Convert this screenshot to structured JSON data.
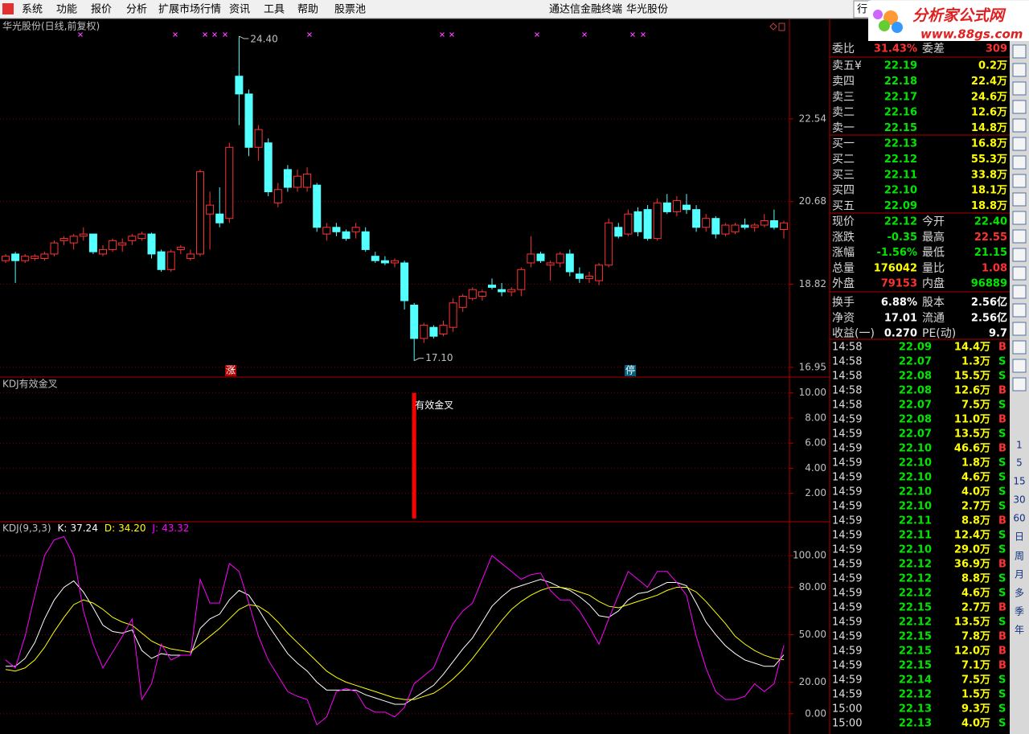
{
  "menu": {
    "items": [
      "系统",
      "功能",
      "报价",
      "分析",
      "扩展市场行情",
      "资讯",
      "工具",
      "帮助",
      "股票池"
    ],
    "app_title": "通达信金融终端",
    "stock": "华光股份",
    "tab": "行"
  },
  "logo": {
    "title": "分析家公式网",
    "url": "www.88gs.com"
  },
  "price_chart": {
    "title": "华光股份(日线,前复权)",
    "up_color": "#ff3232",
    "down_color": "#54ffff",
    "candles": [
      [
        19.35,
        19.5,
        19.3,
        19.45
      ],
      [
        19.5,
        19.55,
        18.85,
        19.35
      ],
      [
        19.35,
        19.5,
        19.3,
        19.45
      ],
      [
        19.4,
        19.5,
        19.35,
        19.45
      ],
      [
        19.4,
        19.55,
        19.35,
        19.5
      ],
      [
        19.5,
        19.8,
        19.45,
        19.75
      ],
      [
        19.8,
        19.9,
        19.7,
        19.85
      ],
      [
        19.75,
        19.95,
        19.6,
        19.9
      ],
      [
        19.9,
        20.1,
        19.8,
        19.95
      ],
      [
        19.95,
        19.95,
        19.5,
        19.55
      ],
      [
        19.5,
        19.7,
        19.45,
        19.6
      ],
      [
        19.6,
        19.85,
        19.55,
        19.8
      ],
      [
        19.7,
        19.85,
        19.55,
        19.75
      ],
      [
        19.8,
        19.95,
        19.7,
        19.9
      ],
      [
        19.85,
        20.0,
        19.8,
        19.95
      ],
      [
        19.95,
        19.98,
        19.4,
        19.5
      ],
      [
        19.55,
        19.6,
        19.1,
        19.15
      ],
      [
        19.15,
        19.6,
        19.1,
        19.55
      ],
      [
        19.6,
        19.7,
        19.5,
        19.65
      ],
      [
        19.4,
        19.6,
        19.35,
        19.5
      ],
      [
        19.5,
        21.4,
        19.45,
        21.35
      ],
      [
        20.4,
        20.9,
        19.6,
        20.6
      ],
      [
        20.4,
        21.0,
        20.1,
        20.2
      ],
      [
        20.3,
        22.0,
        20.2,
        21.9
      ],
      [
        23.5,
        24.4,
        22.4,
        23.1
      ],
      [
        23.1,
        23.2,
        21.7,
        21.9
      ],
      [
        21.9,
        22.4,
        21.6,
        22.3
      ],
      [
        22.0,
        22.1,
        20.8,
        20.9
      ],
      [
        20.65,
        21.1,
        20.55,
        20.95
      ],
      [
        21.4,
        21.5,
        20.9,
        21.0
      ],
      [
        21.0,
        21.4,
        20.9,
        21.25
      ],
      [
        21.0,
        21.45,
        20.9,
        21.3
      ],
      [
        21.05,
        21.1,
        20.0,
        20.1
      ],
      [
        19.95,
        20.2,
        19.8,
        20.1
      ],
      [
        20.1,
        20.2,
        19.9,
        20.0
      ],
      [
        20.0,
        20.05,
        19.8,
        19.85
      ],
      [
        20.0,
        20.2,
        19.85,
        20.1
      ],
      [
        20.0,
        20.1,
        19.55,
        19.6
      ],
      [
        19.45,
        19.55,
        19.3,
        19.35
      ],
      [
        19.35,
        19.45,
        19.25,
        19.3
      ],
      [
        19.3,
        19.4,
        19.2,
        19.35
      ],
      [
        19.3,
        19.35,
        18.25,
        18.45
      ],
      [
        18.35,
        18.4,
        17.1,
        17.6
      ],
      [
        17.6,
        17.95,
        17.5,
        17.9
      ],
      [
        17.85,
        17.9,
        17.6,
        17.65
      ],
      [
        17.7,
        18.0,
        17.65,
        17.9
      ],
      [
        17.85,
        18.5,
        17.75,
        18.4
      ],
      [
        18.3,
        18.6,
        18.2,
        18.55
      ],
      [
        18.5,
        18.75,
        18.45,
        18.7
      ],
      [
        18.55,
        18.7,
        18.45,
        18.65
      ],
      [
        18.8,
        18.95,
        18.7,
        18.75
      ],
      [
        18.7,
        18.85,
        18.55,
        18.65
      ],
      [
        18.65,
        18.75,
        18.55,
        18.7
      ],
      [
        18.7,
        19.2,
        18.55,
        19.15
      ],
      [
        19.3,
        19.9,
        19.2,
        19.5
      ],
      [
        19.5,
        19.55,
        19.3,
        19.35
      ],
      [
        19.25,
        19.35,
        18.9,
        19.3
      ],
      [
        19.3,
        19.55,
        19.2,
        19.5
      ],
      [
        19.5,
        19.6,
        19.0,
        19.1
      ],
      [
        19.05,
        19.2,
        18.85,
        18.95
      ],
      [
        18.95,
        19.1,
        18.85,
        19.0
      ],
      [
        18.9,
        19.3,
        18.8,
        19.25
      ],
      [
        19.25,
        20.3,
        19.2,
        20.2
      ],
      [
        20.1,
        20.2,
        19.85,
        19.9
      ],
      [
        19.95,
        20.5,
        19.9,
        20.4
      ],
      [
        20.45,
        20.55,
        19.9,
        20.0
      ],
      [
        20.5,
        20.6,
        19.8,
        19.85
      ],
      [
        19.85,
        20.75,
        19.8,
        20.65
      ],
      [
        20.65,
        20.85,
        20.4,
        20.45
      ],
      [
        20.45,
        20.8,
        20.35,
        20.7
      ],
      [
        20.6,
        20.85,
        20.4,
        20.5
      ],
      [
        20.5,
        20.6,
        20.0,
        20.1
      ],
      [
        20.1,
        20.4,
        20.0,
        20.3
      ],
      [
        20.3,
        20.35,
        19.85,
        19.95
      ],
      [
        19.95,
        20.2,
        19.9,
        20.15
      ],
      [
        20.0,
        20.2,
        19.95,
        20.15
      ],
      [
        20.15,
        20.3,
        20.05,
        20.1
      ],
      [
        20.1,
        20.2,
        20.0,
        20.15
      ],
      [
        20.15,
        20.4,
        20.1,
        20.25
      ],
      [
        20.25,
        20.5,
        20.05,
        20.1
      ],
      [
        20.05,
        20.25,
        19.85,
        20.2
      ]
    ],
    "ylim": [
      16.75,
      24.78
    ],
    "yticks": [
      16.95,
      18.82,
      20.68,
      22.54
    ],
    "high_label": "24.40",
    "low_label": "17.10",
    "signals": [
      "涨",
      "停"
    ]
  },
  "signal_chart": {
    "title": "KDJ有效金叉",
    "label": "有效金叉",
    "color": "#ff0000",
    "values": [
      0,
      0,
      0,
      0,
      0,
      0,
      0,
      0,
      0,
      0,
      0,
      0,
      0,
      0,
      0,
      0,
      0,
      0,
      0,
      0,
      0,
      0,
      0,
      0,
      0,
      0,
      0,
      0,
      0,
      0,
      0,
      0,
      0,
      0,
      0,
      0,
      0,
      0,
      0,
      0,
      0,
      0,
      10,
      0,
      0,
      0,
      0,
      0,
      0,
      0,
      0,
      0,
      0,
      0,
      0,
      0,
      0,
      0,
      0,
      0,
      0,
      0,
      0,
      0,
      0,
      0,
      0,
      0,
      0,
      0,
      0,
      0,
      0,
      0,
      0,
      0,
      0,
      0,
      0,
      0,
      0
    ],
    "ylim": [
      -0.2,
      11.2
    ],
    "yticks": [
      {
        "value": 2,
        "label": "2.00"
      },
      {
        "value": 4,
        "label": "4.00"
      },
      {
        "value": 6,
        "label": "6.00"
      },
      {
        "value": 8,
        "label": "8.00"
      },
      {
        "value": 10,
        "label": "10.00"
      }
    ]
  },
  "kdj_chart": {
    "title": "KDJ(9,3,3)",
    "ylim": [
      -12.8,
      120.9
    ],
    "yticks": [
      {
        "value": 0,
        "label": "0.00"
      },
      {
        "value": 20,
        "label": "20.00"
      },
      {
        "value": 50,
        "label": "50.00"
      },
      {
        "value": 80,
        "label": "80.00"
      },
      {
        "value": 100,
        "label": "100.00"
      }
    ],
    "series": [
      {
        "name": "K:",
        "color": "#ffffff",
        "last_label": "37.24",
        "values": [
          30,
          30,
          35,
          45,
          60,
          72,
          80,
          84,
          77,
          67,
          56,
          52,
          51,
          53,
          40,
          35,
          38,
          37,
          37,
          37,
          54,
          60,
          63,
          72,
          78,
          75,
          66,
          56,
          47,
          38,
          32,
          27,
          20,
          15,
          15,
          15,
          15,
          12,
          10,
          8,
          6,
          6,
          10,
          14,
          18,
          25,
          33,
          41,
          48,
          58,
          68,
          74,
          79,
          81,
          83,
          85,
          83,
          80,
          78,
          74,
          69,
          62,
          61,
          65,
          72,
          76,
          77,
          80,
          83,
          83,
          81,
          70,
          58,
          50,
          43,
          38,
          34,
          32,
          30,
          30,
          37.24
        ]
      },
      {
        "name": "D:",
        "color": "#ffff00",
        "last_label": "34.20",
        "values": [
          28,
          27,
          29,
          34,
          42,
          52,
          61,
          69,
          72,
          70,
          66,
          61,
          58,
          56,
          51,
          46,
          43,
          41,
          40,
          39,
          44,
          49,
          54,
          60,
          66,
          69,
          68,
          64,
          58,
          51,
          45,
          39,
          33,
          27,
          23,
          20,
          18,
          16,
          14,
          12,
          10,
          9,
          9,
          11,
          13,
          17,
          22,
          28,
          35,
          43,
          51,
          59,
          66,
          71,
          75,
          78,
          80,
          80,
          79,
          77,
          75,
          71,
          68,
          67,
          69,
          71,
          73,
          75,
          78,
          80,
          80,
          77,
          71,
          64,
          57,
          49,
          44,
          40,
          37,
          35,
          34.2
        ]
      },
      {
        "name": "J:",
        "color": "#ff00ff",
        "last_label": "43.32",
        "values": [
          34,
          29,
          49,
          75,
          100,
          110,
          112,
          100,
          65,
          44,
          29,
          39,
          49,
          60,
          9,
          19,
          44,
          34,
          37,
          37,
          85,
          70,
          70,
          95,
          90,
          70,
          49,
          34,
          24,
          14,
          11,
          9,
          -7,
          -2,
          14,
          16,
          14,
          4,
          1,
          1,
          -2,
          4,
          19,
          24,
          29,
          44,
          57,
          65,
          70,
          85,
          100,
          95,
          90,
          85,
          88,
          89,
          78,
          72,
          72,
          65,
          55,
          44,
          60,
          75,
          90,
          85,
          80,
          90,
          90,
          83,
          75,
          49,
          29,
          14,
          9,
          9,
          11,
          19,
          14,
          19,
          43.32
        ]
      }
    ]
  },
  "quote": {
    "ratio": {
      "l1": "委比",
      "v1": "31.43%",
      "c1": "#ff3232",
      "l2": "委差",
      "v2": "309",
      "c2": "#ff3232"
    },
    "asks": [
      [
        "卖五¥",
        "22.19",
        "0.2万"
      ],
      [
        "卖四",
        "22.18",
        "22.4万"
      ],
      [
        "卖三",
        "22.17",
        "24.6万"
      ],
      [
        "卖二",
        "22.16",
        "12.6万"
      ],
      [
        "卖一",
        "22.15",
        "14.8万"
      ]
    ],
    "bids": [
      [
        "买一",
        "22.13",
        "16.8万"
      ],
      [
        "买二",
        "22.12",
        "55.3万"
      ],
      [
        "买三",
        "22.11",
        "33.8万"
      ],
      [
        "买四",
        "22.10",
        "18.1万"
      ],
      [
        "买五",
        "22.09",
        "18.8万"
      ]
    ],
    "book_price_color": "#00e600",
    "book_volume_color": "#ffff00",
    "stats": [
      {
        "l1": "现价",
        "v1": "22.12",
        "c1": "#00e600",
        "l2": "今开",
        "v2": "22.40",
        "c2": "#00e600"
      },
      {
        "l1": "涨跌",
        "v1": "-0.35",
        "c1": "#00e600",
        "l2": "最高",
        "v2": "22.55",
        "c2": "#ff3232"
      },
      {
        "l1": "涨幅",
        "v1": "-1.56%",
        "c1": "#00e600",
        "l2": "最低",
        "v2": "21.15",
        "c2": "#00e600"
      },
      {
        "l1": "总量",
        "v1": "176042",
        "c1": "#ffff00",
        "l2": "量比",
        "v2": "1.08",
        "c2": "#ff3232"
      },
      {
        "l1": "外盘",
        "v1": "79153",
        "c1": "#ff3232",
        "l2": "内盘",
        "v2": "96889",
        "c2": "#00e600"
      },
      {
        "l1": "换手",
        "v1": "6.88%",
        "c1": "#ffffff",
        "l2": "股本",
        "v2": "2.56亿",
        "c2": "#ffffff"
      },
      {
        "l1": "净资",
        "v1": "17.01",
        "c1": "#ffffff",
        "l2": "流通",
        "v2": "2.56亿",
        "c2": "#ffffff"
      },
      {
        "l1": "收益(一)",
        "v1": "0.270",
        "c1": "#ffffff",
        "l2": "PE(动)",
        "v2": "9.7",
        "c2": "#ffffff"
      }
    ]
  },
  "trades": [
    [
      "14:58",
      "22.09",
      "14.4万",
      "B"
    ],
    [
      "14:58",
      "22.07",
      "1.3万",
      "S"
    ],
    [
      "14:58",
      "22.08",
      "15.5万",
      "S"
    ],
    [
      "14:58",
      "22.08",
      "12.6万",
      "B"
    ],
    [
      "14:58",
      "22.07",
      "7.5万",
      "S"
    ],
    [
      "14:59",
      "22.08",
      "11.0万",
      "B"
    ],
    [
      "14:59",
      "22.07",
      "13.5万",
      "S"
    ],
    [
      "14:59",
      "22.10",
      "46.6万",
      "B"
    ],
    [
      "14:59",
      "22.10",
      "1.8万",
      "S"
    ],
    [
      "14:59",
      "22.10",
      "4.6万",
      "S"
    ],
    [
      "14:59",
      "22.10",
      "4.0万",
      "S"
    ],
    [
      "14:59",
      "22.10",
      "2.7万",
      "S"
    ],
    [
      "14:59",
      "22.11",
      "8.8万",
      "B"
    ],
    [
      "14:59",
      "22.11",
      "12.4万",
      "S"
    ],
    [
      "14:59",
      "22.10",
      "29.0万",
      "S"
    ],
    [
      "14:59",
      "22.12",
      "36.9万",
      "B"
    ],
    [
      "14:59",
      "22.12",
      "8.8万",
      "S"
    ],
    [
      "14:59",
      "22.12",
      "4.6万",
      "S"
    ],
    [
      "14:59",
      "22.15",
      "2.7万",
      "B"
    ],
    [
      "14:59",
      "22.12",
      "13.5万",
      "S"
    ],
    [
      "14:59",
      "22.15",
      "7.8万",
      "B"
    ],
    [
      "14:59",
      "22.15",
      "12.0万",
      "B"
    ],
    [
      "14:59",
      "22.15",
      "7.1万",
      "B"
    ],
    [
      "14:59",
      "22.14",
      "7.5万",
      "S"
    ],
    [
      "14:59",
      "22.12",
      "1.5万",
      "S"
    ],
    [
      "15:00",
      "22.13",
      "9.3万",
      "S"
    ],
    [
      "15:00",
      "22.13",
      "4.0万",
      "S"
    ]
  ],
  "sidebar": [
    "1",
    "5",
    "15",
    "30",
    "60",
    "日",
    "周",
    "月",
    "多",
    "季",
    "年"
  ]
}
